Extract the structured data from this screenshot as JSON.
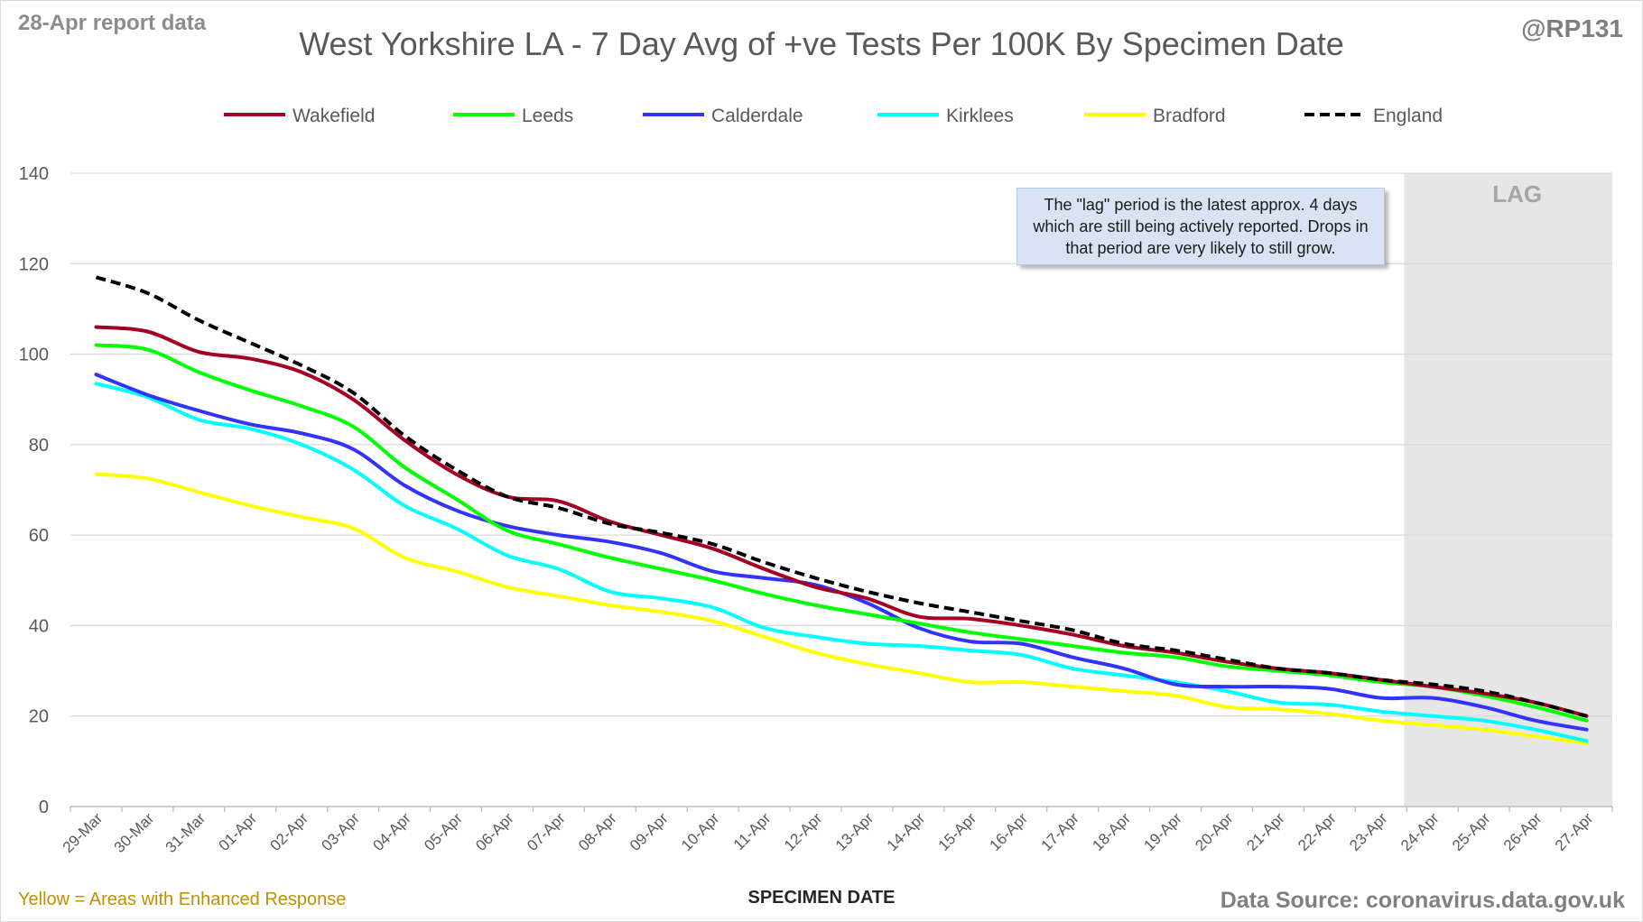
{
  "header": {
    "report_label": "28-Apr report data",
    "handle": "@RP131",
    "title": "West Yorkshire LA - 7 Day Avg of +ve Tests Per 100K By Specimen Date"
  },
  "annotation": {
    "text": "The \"lag\" period is the latest approx. 4 days which are still being actively reported.  Drops in that period are very likely to still grow.",
    "lag_label": "LAG"
  },
  "footer": {
    "legend_note": "Yellow = Areas with Enhanced Response",
    "source": "Data Source: coronavirus.data.gov.uk"
  },
  "chart_data": {
    "type": "line",
    "title": "West Yorkshire LA - 7 Day Avg of +ve Tests Per 100K By Specimen Date",
    "xlabel": "SPECIMEN DATE",
    "ylabel": "",
    "ylim": [
      0,
      140
    ],
    "yticks": [
      0,
      20,
      40,
      60,
      80,
      100,
      120,
      140
    ],
    "grid": true,
    "legend_position": "top",
    "lag_region": {
      "from": "24-Apr",
      "to": "27-Apr",
      "color": "#e7e6e6"
    },
    "categories": [
      "29-Mar",
      "30-Mar",
      "31-Mar",
      "01-Apr",
      "02-Apr",
      "03-Apr",
      "04-Apr",
      "05-Apr",
      "06-Apr",
      "07-Apr",
      "08-Apr",
      "09-Apr",
      "10-Apr",
      "11-Apr",
      "12-Apr",
      "13-Apr",
      "14-Apr",
      "15-Apr",
      "16-Apr",
      "17-Apr",
      "18-Apr",
      "19-Apr",
      "20-Apr",
      "21-Apr",
      "22-Apr",
      "23-Apr",
      "24-Apr",
      "25-Apr",
      "26-Apr",
      "27-Apr"
    ],
    "series": [
      {
        "name": "Wakefield",
        "color": "#a50021",
        "dashed": false,
        "values": [
          106,
          105,
          100.5,
          99,
          96,
          90,
          81,
          73.5,
          68.5,
          67.5,
          63,
          60,
          57,
          52.5,
          48.5,
          46,
          42,
          41.5,
          40,
          38,
          35.5,
          34,
          32,
          30.5,
          29.5,
          28,
          26.5,
          25,
          23,
          20
        ]
      },
      {
        "name": "Leeds",
        "color": "#00ff00",
        "dashed": false,
        "values": [
          102,
          101,
          96,
          92,
          88.5,
          84,
          75,
          68,
          61,
          58,
          55,
          52.5,
          50,
          47,
          44.5,
          42.5,
          40.5,
          38.5,
          37,
          35.5,
          34,
          33,
          31,
          30,
          29,
          27.5,
          26.5,
          24.5,
          22,
          19
        ]
      },
      {
        "name": "Calderdale",
        "color": "#3333ff",
        "dashed": false,
        "values": [
          95.5,
          91,
          87.5,
          84.5,
          82.5,
          79,
          71,
          65.5,
          62,
          60,
          58.5,
          56,
          52,
          50.5,
          49,
          45,
          39.5,
          36.5,
          36,
          33,
          30.5,
          27,
          26.5,
          26.5,
          26,
          24,
          24,
          22,
          19,
          17
        ]
      },
      {
        "name": "Kirklees",
        "color": "#00ffff",
        "dashed": false,
        "values": [
          93.5,
          90.5,
          85.5,
          83.5,
          80,
          74.5,
          66.5,
          61.5,
          55.5,
          52.5,
          47.5,
          46,
          44,
          39.5,
          37.5,
          36,
          35.5,
          34.5,
          33.5,
          30.5,
          29,
          27.5,
          25.5,
          23,
          22.5,
          21,
          20,
          19,
          17,
          14.5
        ]
      },
      {
        "name": "Bradford",
        "color": "#ffff00",
        "dashed": false,
        "values": [
          73.5,
          72.5,
          69.5,
          66.5,
          64,
          61.5,
          55,
          52,
          48.5,
          46.5,
          44.5,
          43,
          41,
          37.5,
          34,
          31.5,
          29.5,
          27.5,
          27.5,
          26.5,
          25.5,
          24.5,
          22,
          21.5,
          20.5,
          19,
          18,
          17,
          15.5,
          14
        ]
      },
      {
        "name": "England",
        "color": "#000000",
        "dashed": true,
        "values": [
          117,
          113.5,
          107.5,
          102.5,
          97.5,
          91.5,
          82,
          74.5,
          68.5,
          66,
          62.5,
          60.5,
          58,
          54,
          50.5,
          47.5,
          45,
          43,
          41,
          39,
          36,
          34.5,
          32.5,
          30.5,
          29.5,
          28,
          27,
          25.5,
          23,
          20
        ]
      }
    ]
  }
}
